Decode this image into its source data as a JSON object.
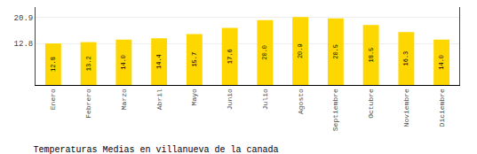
{
  "chart_data": {
    "type": "bar",
    "title": "Temperaturas Medias en villanueva de la canada",
    "categories": [
      "Enero",
      "Febrero",
      "Marzo",
      "Abril",
      "Mayo",
      "Junio",
      "Julio",
      "Agosto",
      "Septiembre",
      "Octubre",
      "Noviembre",
      "Diciembre"
    ],
    "values": [
      12.8,
      13.2,
      14.0,
      14.4,
      15.7,
      17.6,
      20.0,
      20.9,
      20.5,
      18.5,
      16.3,
      14.0
    ],
    "value_labels": [
      "12.8",
      "13.2",
      "14.0",
      "14.4",
      "15.7",
      "17.6",
      "20.0",
      "20.9",
      "20.5",
      "18.5",
      "16.3",
      "14.0"
    ],
    "data_labels": true,
    "color": "#FFD700",
    "ylim": [
      0,
      24.0
    ],
    "yticks": [
      12.8,
      20.9
    ],
    "grid": true
  }
}
